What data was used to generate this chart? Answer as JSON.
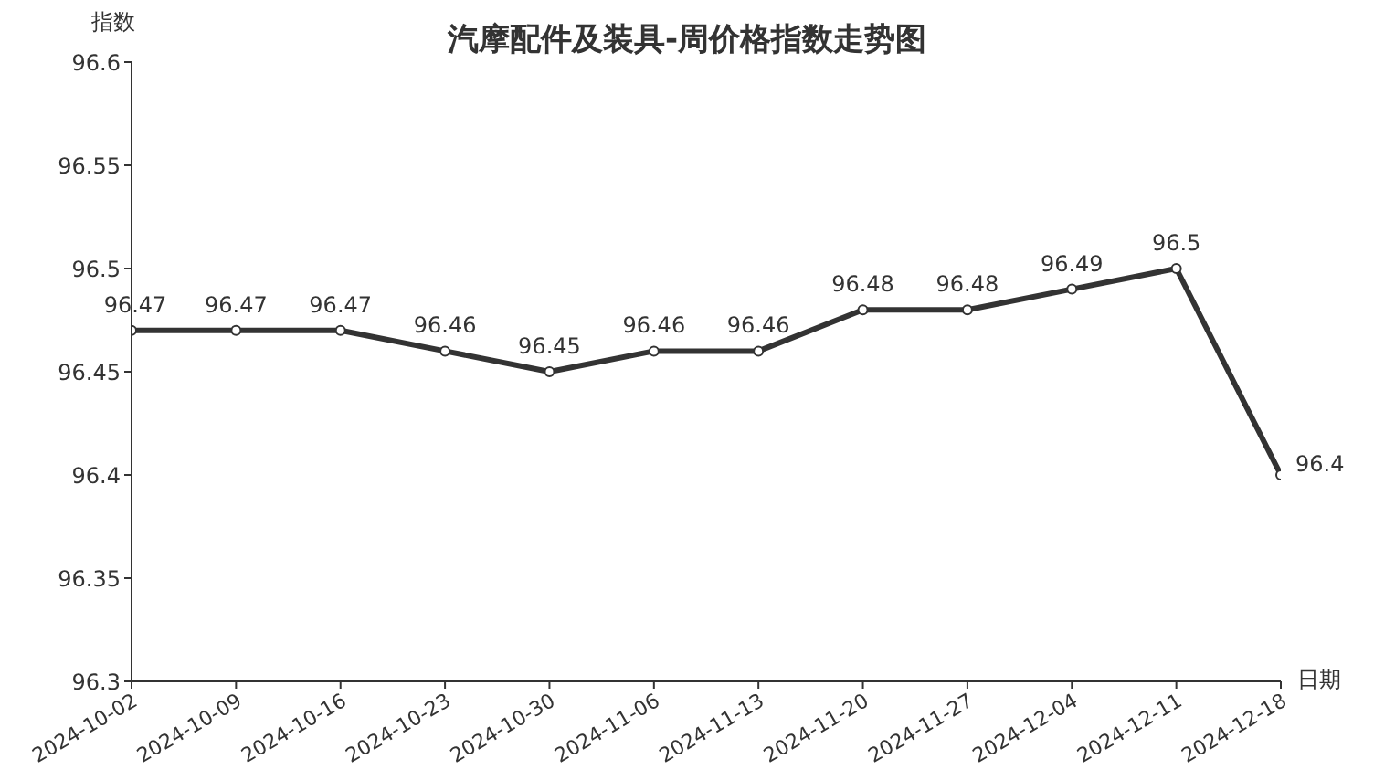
{
  "chart_data": {
    "type": "line",
    "title": "汽摩配件及装具-周价格指数走势图",
    "ylabel": "指数",
    "xlabel": "日期",
    "categories": [
      "2024-10-02",
      "2024-10-09",
      "2024-10-16",
      "2024-10-23",
      "2024-10-30",
      "2024-11-06",
      "2024-11-13",
      "2024-11-20",
      "2024-11-27",
      "2024-12-04",
      "2024-12-11",
      "2024-12-18"
    ],
    "series": [
      {
        "color": "#333333",
        "values": [
          96.47,
          96.47,
          96.47,
          96.46,
          96.45,
          96.46,
          96.46,
          96.48,
          96.48,
          96.49,
          96.5,
          96.4
        ]
      }
    ],
    "ylim": [
      96.3,
      96.6
    ],
    "yticks": [
      96.3,
      96.35,
      96.4,
      96.45,
      96.5,
      96.55,
      96.6
    ],
    "grid": false,
    "legend": false,
    "marker": "circle",
    "line_style": "solid",
    "data_labels": true
  }
}
